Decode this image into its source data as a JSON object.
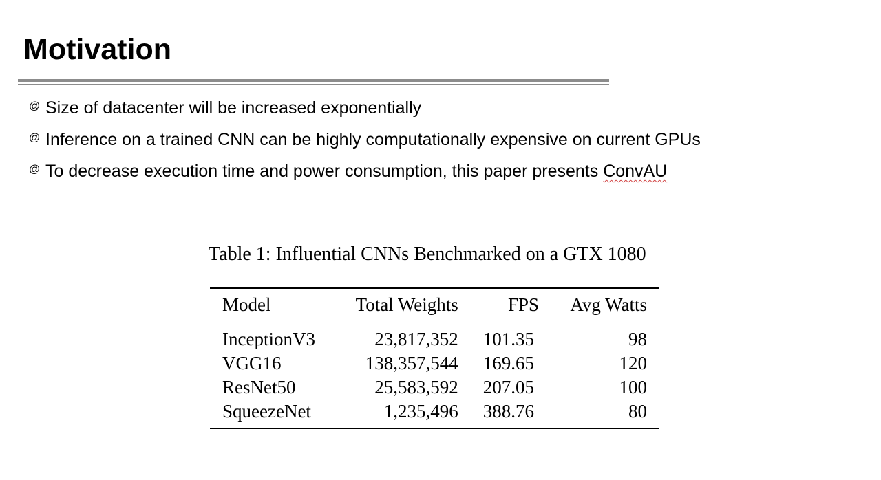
{
  "slide": {
    "title": "Motivation",
    "bullets": [
      {
        "icon": "spiral-bullet-icon",
        "text": "Size of datacenter will be increased exponentially"
      },
      {
        "icon": "spiral-bullet-icon",
        "text": "Inference on a trained CNN can be highly computationally expensive on current GPUs"
      },
      {
        "icon": "spiral-bullet-icon",
        "text_before": "To decrease execution time and power consumption, this paper presents ",
        "text_marked": "ConvAU"
      }
    ],
    "bullet_glyph": "@"
  },
  "table": {
    "caption": "Table 1: Influential CNNs Benchmarked on a GTX 1080",
    "headers": [
      "Model",
      "Total Weights",
      "FPS",
      "Avg Watts"
    ],
    "rows": [
      [
        "InceptionV3",
        "23,817,352",
        "101.35",
        "98"
      ],
      [
        "VGG16",
        "138,357,544",
        "169.65",
        "120"
      ],
      [
        "ResNet50",
        "25,583,592",
        "207.05",
        "100"
      ],
      [
        "SqueezeNet",
        "1,235,496",
        "388.76",
        "80"
      ]
    ]
  },
  "colors": {
    "rule": "#8c8c8c",
    "spellcheck": "#d04040"
  }
}
